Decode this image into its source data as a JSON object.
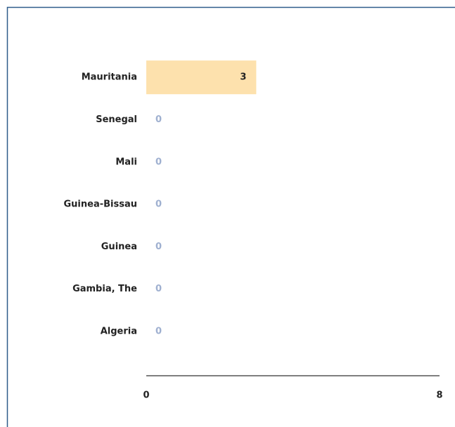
{
  "chart_data": {
    "type": "bar",
    "orientation": "horizontal",
    "categories": [
      "Mauritania",
      "Senegal",
      "Mali",
      "Guinea-Bissau",
      "Guinea",
      "Gambia, The",
      "Algeria"
    ],
    "values": [
      3,
      0,
      0,
      0,
      0,
      0,
      0
    ],
    "color": "#fde1ad",
    "xlim": [
      0,
      8
    ],
    "xticks": [
      0,
      8
    ],
    "grid": false
  }
}
